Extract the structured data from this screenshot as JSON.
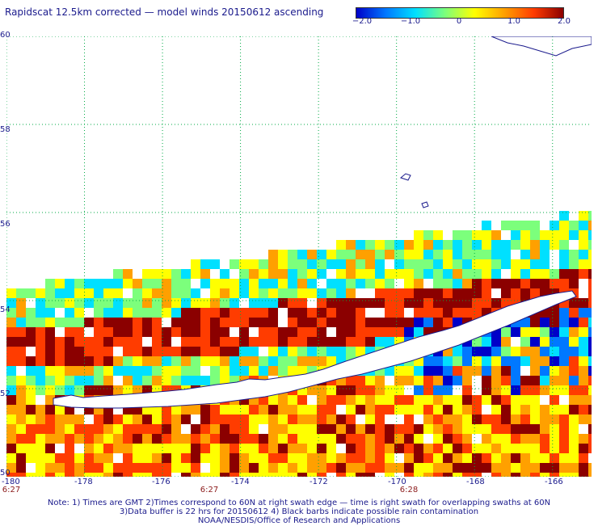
{
  "title": "Rapidscat 12.5km corrected — model winds 20150612 ascending",
  "colorbar": {
    "labels": [
      "−2.0",
      "−1.0",
      "0",
      "1.0",
      "2.0"
    ],
    "colors": [
      "#0000c8",
      "#0078ff",
      "#00e0ff",
      "#7cff7c",
      "#ffff00",
      "#ffa000",
      "#ff3c00",
      "#8b0000"
    ]
  },
  "map": {
    "lon_range": [
      -180,
      -165
    ],
    "lat_range": [
      50,
      60
    ],
    "lon_ticks": [
      "-180",
      "-178",
      "-176",
      "-174",
      "-172",
      "-170",
      "-168",
      "-166"
    ],
    "lat_ticks": [
      "60",
      "58",
      "56",
      "54",
      "52",
      "50"
    ],
    "time_labels": [
      {
        "lon": -180,
        "text": "6:27"
      },
      {
        "lon": -175,
        "text": "6:27"
      },
      {
        "lon": -170,
        "text": "6:28"
      }
    ],
    "land_color": "#ffffff",
    "coast_color": "#1a1a8c",
    "grid": true
  },
  "notes": [
    "Note: 1) Times are GMT 2)Times correspond to 60N at right swath edge — time is right swath for overlapping swaths at 60N",
    "3)Data buffer is 22 hrs for 20150612 4) Black barbs indicate possible rain contamination",
    "NOAA/NESDIS/Office of Research and Applications"
  ]
}
